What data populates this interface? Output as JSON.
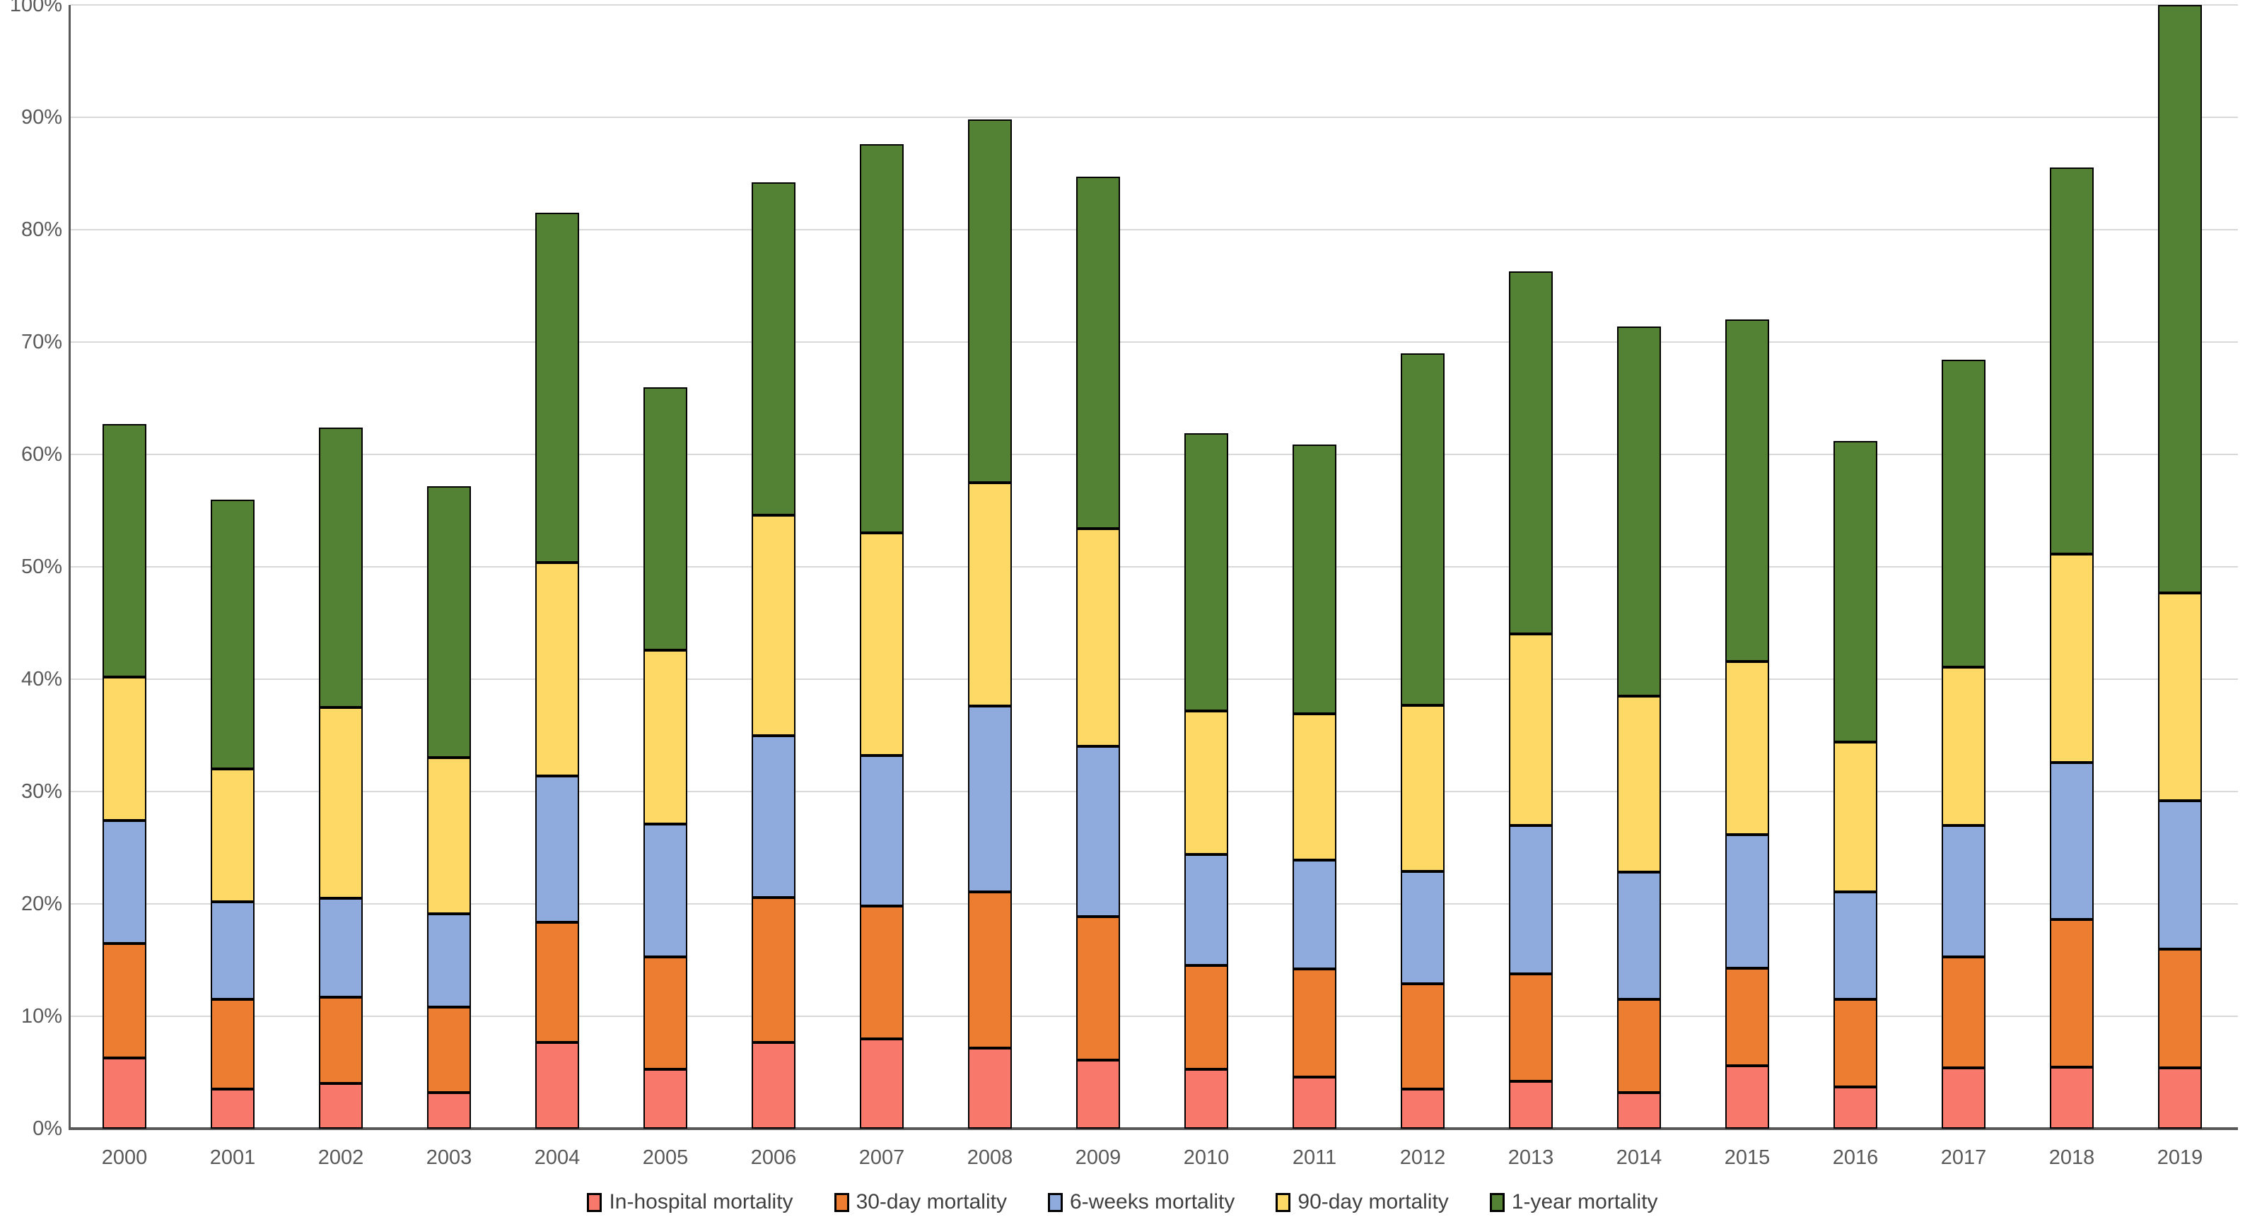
{
  "chart_data": {
    "type": "bar",
    "stacked": true,
    "title": "",
    "xlabel": "",
    "ylabel": "",
    "ylim": [
      0,
      100
    ],
    "grid": "horizontal",
    "legend_position": "bottom",
    "y_tick_labels": [
      "0%",
      "10%",
      "20%",
      "30%",
      "40%",
      "50%",
      "60%",
      "70%",
      "80%",
      "90%",
      "100%"
    ],
    "categories": [
      "2000",
      "2001",
      "2002",
      "2003",
      "2004",
      "2005",
      "2006",
      "2007",
      "2008",
      "2009",
      "2010",
      "2011",
      "2012",
      "2013",
      "2014",
      "2015",
      "2016",
      "2017",
      "2018",
      "2019"
    ],
    "series": [
      {
        "name": "In-hospital mortality",
        "color": "#F8796B",
        "values": [
          6.3,
          3.5,
          4.0,
          3.2,
          7.7,
          5.3,
          7.7,
          8.0,
          7.2,
          6.1,
          5.3,
          4.6,
          3.5,
          4.2,
          3.2,
          5.6,
          3.7,
          5.4,
          5.5,
          5.4
        ]
      },
      {
        "name": "30-day mortality",
        "color": "#ED7D31",
        "values": [
          10.2,
          8.0,
          7.7,
          7.6,
          10.7,
          10.0,
          12.9,
          11.8,
          13.9,
          12.8,
          9.2,
          9.6,
          9.4,
          9.6,
          8.3,
          8.7,
          7.8,
          9.9,
          13.1,
          10.6
        ]
      },
      {
        "name": "6-weeks mortality",
        "color": "#8FAADC",
        "values": [
          10.9,
          8.7,
          8.8,
          8.3,
          13.0,
          11.8,
          14.4,
          13.4,
          16.5,
          15.1,
          9.9,
          9.7,
          10.0,
          13.2,
          11.3,
          11.9,
          9.6,
          11.7,
          14.0,
          13.2
        ]
      },
      {
        "name": "90-day mortality",
        "color": "#FFD966",
        "values": [
          12.8,
          11.8,
          17.0,
          13.9,
          19.0,
          15.5,
          19.6,
          19.8,
          19.9,
          19.4,
          12.8,
          13.0,
          14.8,
          17.0,
          15.7,
          15.4,
          13.3,
          14.1,
          18.5,
          18.5
        ]
      },
      {
        "name": "1-year mortality",
        "color": "#548235",
        "values": [
          22.5,
          24.0,
          24.9,
          24.2,
          31.1,
          23.4,
          29.6,
          34.6,
          32.3,
          31.3,
          24.7,
          24.0,
          31.3,
          32.3,
          32.9,
          30.4,
          26.8,
          27.3,
          34.4,
          52.3
        ]
      }
    ],
    "cumulative_tops": {
      "in_hospital": [
        6.3,
        3.5,
        4.0,
        3.2,
        7.7,
        5.3,
        7.7,
        8.0,
        7.2,
        6.1,
        5.3,
        4.6,
        3.5,
        4.2,
        3.2,
        5.6,
        3.7,
        5.4,
        5.5,
        5.4
      ],
      "30_day": [
        16.5,
        11.5,
        11.7,
        10.8,
        18.4,
        15.3,
        20.6,
        19.8,
        21.1,
        18.9,
        14.5,
        14.2,
        12.9,
        13.8,
        11.5,
        14.3,
        11.5,
        15.3,
        18.6,
        16.0
      ],
      "6_weeks": [
        27.4,
        20.2,
        20.5,
        19.1,
        31.4,
        27.1,
        35.0,
        33.2,
        37.6,
        34.0,
        24.4,
        23.9,
        22.9,
        27.0,
        22.8,
        26.2,
        21.1,
        27.0,
        32.6,
        29.2
      ],
      "90_day": [
        40.2,
        32.0,
        37.5,
        33.0,
        50.4,
        42.6,
        54.6,
        53.0,
        57.5,
        53.4,
        37.2,
        36.9,
        37.7,
        44.0,
        38.5,
        41.6,
        34.4,
        41.1,
        51.1,
        47.7
      ],
      "1_year": [
        62.7,
        56.0,
        62.4,
        57.2,
        81.5,
        66.0,
        84.2,
        87.6,
        89.8,
        84.7,
        61.9,
        60.9,
        69.0,
        76.3,
        71.4,
        72.0,
        61.2,
        68.4,
        85.5,
        100.0
      ]
    }
  },
  "style_colors": {
    "gridline": "#D9D9D9",
    "axis_line": "#595959",
    "tick_text": "#595959",
    "legend_text": "#404040",
    "bar_border": "#000000",
    "background": "#FFFFFF"
  }
}
